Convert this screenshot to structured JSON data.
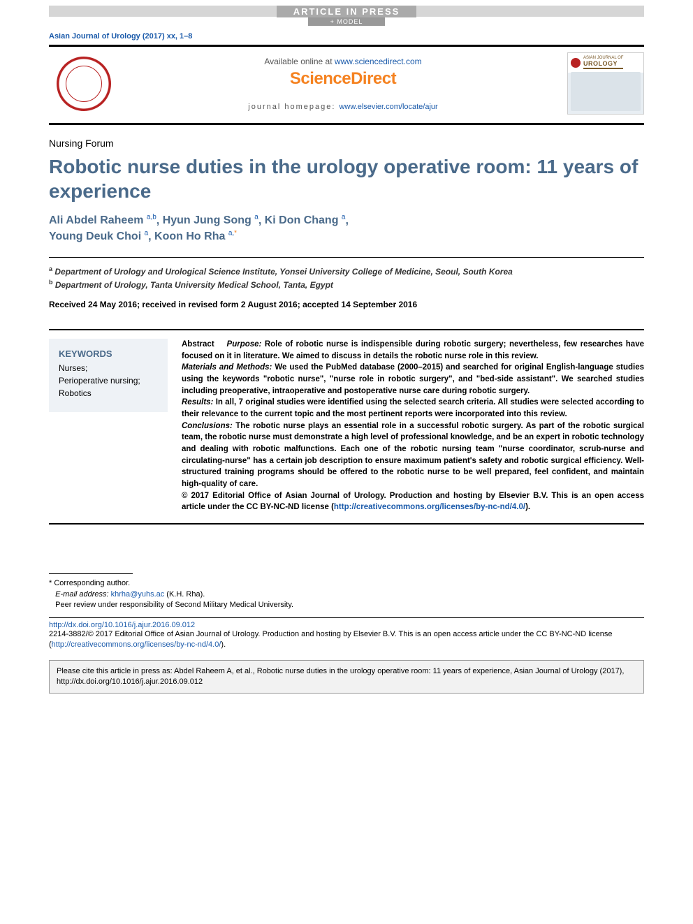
{
  "press": {
    "aip": "ARTICLE IN PRESS",
    "model": "+ MODEL"
  },
  "journal_ref": "Asian Journal of Urology (2017) xx, 1–8",
  "masthead": {
    "available_prefix": "Available online at ",
    "available_link": "www.sciencedirect.com",
    "sciencedirect": "ScienceDirect",
    "homepage_prefix": "journal homepage: ",
    "homepage_link": "www.elsevier.com/locate/ajur",
    "cover_journal_line1": "ASIAN JOURNAL OF",
    "cover_journal_line2": "UROLOGY"
  },
  "article_type": "Nursing Forum",
  "title": "Robotic nurse duties in the urology operative room: 11 years of experience",
  "authors": [
    {
      "name": "Ali Abdel Raheem",
      "sup": "a,b"
    },
    {
      "name": "Hyun Jung Song",
      "sup": "a"
    },
    {
      "name": "Ki Don Chang",
      "sup": "a"
    },
    {
      "name": "Young Deuk Choi",
      "sup": "a"
    },
    {
      "name": "Koon Ho Rha",
      "sup": "a,*",
      "corresponding": true
    }
  ],
  "affiliations": [
    {
      "label": "a",
      "text": "Department of Urology and Urological Science Institute, Yonsei University College of Medicine, Seoul, South Korea"
    },
    {
      "label": "b",
      "text": "Department of Urology, Tanta University Medical School, Tanta, Egypt"
    }
  ],
  "dates": "Received 24 May 2016; received in revised form 2 August 2016; accepted 14 September 2016",
  "keywords": {
    "heading": "KEYWORDS",
    "items": [
      "Nurses;",
      "Perioperative nursing;",
      "Robotics"
    ]
  },
  "abstract": {
    "label": "Abstract",
    "purpose_label": "Purpose:",
    "purpose": " Role of robotic nurse is indispensible during robotic surgery; nevertheless, few researches have focused on it in literature. We aimed to discuss in details the robotic nurse role in this review.",
    "methods_label": "Materials and Methods:",
    "methods": " We used the PubMed database (2000–2015) and searched for original English-language studies using the keywords \"robotic nurse\", \"nurse role in robotic surgery\", and \"bed-side assistant\". We searched studies including preoperative, intraoperative and postoperative nurse care during robotic surgery.",
    "results_label": "Results:",
    "results": " In all, 7 original studies were identified using the selected search criteria. All studies were selected according to their relevance to the current topic and the most pertinent reports were incorporated into this review.",
    "conclusions_label": "Conclusions:",
    "conclusions": " The robotic nurse plays an essential role in a successful robotic surgery. As part of the robotic surgical team, the robotic nurse must demonstrate a high level of professional knowledge, and be an expert in robotic technology and dealing with robotic malfunctions. Each one of the robotic nursing team \"nurse coordinator, scrub-nurse and circulating-nurse\" has a certain job description to ensure maximum patient's safety and robotic surgical efficiency. Well-structured training programs should be offered to the robotic nurse to be well prepared, feel confident, and maintain high-quality of care.",
    "copyright": "© 2017 Editorial Office of Asian Journal of Urology. Production and hosting by Elsevier B.V. This is an open access article under the CC BY-NC-ND license (",
    "cc_link": "http://creativecommons.org/licenses/by-nc-nd/4.0/",
    "copyright_close": ")."
  },
  "footnotes": {
    "corresponding": "* Corresponding author.",
    "email_label": "E-mail address: ",
    "email": "khrha@yuhs.ac",
    "email_who": " (K.H. Rha).",
    "peer_review": "Peer review under responsibility of Second Military Medical University."
  },
  "doi": "http://dx.doi.org/10.1016/j.ajur.2016.09.012",
  "issn_copyright": "2214-3882/© 2017 Editorial Office of Asian Journal of Urology. Production and hosting by Elsevier B.V. This is an open access article under the CC BY-NC-ND license (",
  "issn_cc_link": "http://creativecommons.org/licenses/by-nc-nd/4.0/",
  "issn_close": ").",
  "cite_box": "Please cite this article in press as: Abdel Raheem A, et al., Robotic nurse duties in the urology operative room: 11 years of experience, Asian Journal of Urology (2017), http://dx.doi.org/10.1016/j.ajur.2016.09.012",
  "colors": {
    "title_color": "#4a6a8a",
    "link_color": "#1a5aaa",
    "sd_orange": "#f58220",
    "keyword_bg": "#eef2f6",
    "cite_bg": "#f2f2f2"
  }
}
